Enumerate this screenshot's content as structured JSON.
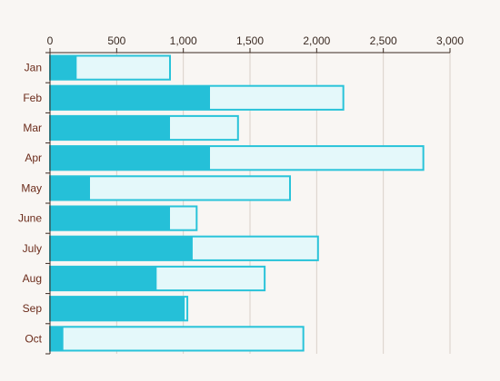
{
  "chart_data": {
    "type": "bar",
    "orientation": "horizontal",
    "categories": [
      "Jan",
      "Feb",
      "Mar",
      "Apr",
      "May",
      "June",
      "July",
      "Aug",
      "Sep",
      "Oct"
    ],
    "series": [
      {
        "values": [
          900,
          2200,
          1410,
          2800,
          1800,
          1100,
          2010,
          1610,
          1030,
          1900
        ]
      },
      {
        "values": [
          200,
          1200,
          900,
          1200,
          300,
          900,
          1070,
          800,
          1010,
          100
        ]
      }
    ],
    "x_axis": {
      "position": "top",
      "min": 0,
      "max": 3000,
      "ticks": [
        0,
        500,
        1000,
        1500,
        2000,
        2500,
        3000
      ],
      "tick_labels": [
        "0",
        "500",
        "1,000",
        "1,500",
        "2,000",
        "2,500",
        "3,000"
      ]
    },
    "grid": "vertical",
    "title": "",
    "xlabel": "",
    "ylabel": "",
    "colors": {
      "background": "#f9f6f3",
      "series_fill": [
        "#e4f8fa",
        "#25c0d8"
      ],
      "series_stroke": [
        "#29c3d9",
        "#25c0d8"
      ],
      "grid": "#d9d0c9",
      "axis": "#3a2a22",
      "tick_text": "#3a2a22",
      "category_text": "#6b2b1a"
    }
  }
}
